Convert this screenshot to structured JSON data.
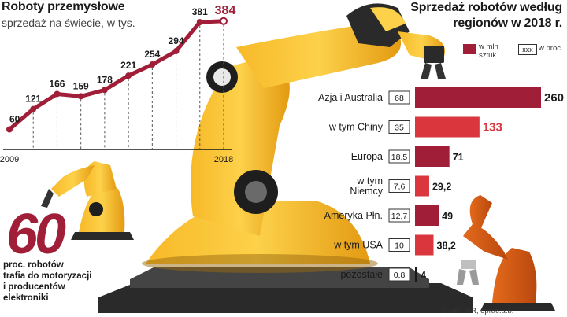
{
  "left_chart": {
    "title": "Roboty przemysłowe",
    "subtitle": "sprzedaż na świecie, w tys.",
    "colors": {
      "line": "#a01e37",
      "last_label": "#a01e37",
      "grid": "#555555"
    }
  },
  "right_chart": {
    "title_line1": "Sprzedaż robotów według",
    "title_line2": "regionów w 2018 r.",
    "legend": {
      "value_label_line1": "w mln",
      "value_label_line2": "sztuk",
      "percent_box": "xxx",
      "percent_label": "w proc."
    },
    "colors": {
      "dark_bar": "#a01e37",
      "light_bar": "#d9363e",
      "black_bar": "#1a1a1a"
    }
  },
  "chart_data": [
    {
      "type": "line",
      "title": "Roboty przemysłowe",
      "subtitle": "sprzedaż na świecie, w tys.",
      "x": [
        2009,
        2010,
        2011,
        2012,
        2013,
        2014,
        2015,
        2016,
        2017,
        2018
      ],
      "x_tick_labels": [
        "2009",
        "2018"
      ],
      "values": [
        60,
        121,
        166,
        159,
        178,
        221,
        254,
        294,
        381,
        384
      ],
      "value_labels": [
        "60",
        "121",
        "166",
        "159",
        "178",
        "221",
        "254",
        "294",
        "381",
        "384"
      ],
      "ylim": [
        0,
        400
      ],
      "grid": "vertical dashed"
    },
    {
      "type": "bar",
      "orientation": "horizontal",
      "title": "Sprzedaż robotów według regionów w 2018 r.",
      "categories": [
        "Azja i Australia",
        "w tym Chiny",
        "Europa",
        "w tym Niemcy",
        "Ameryka Płn.",
        "w tym USA",
        "pozostałe"
      ],
      "category_lines": [
        [
          "Azja i Australia"
        ],
        [
          "w tym Chiny"
        ],
        [
          "Europa"
        ],
        [
          "w tym",
          "Niemcy"
        ],
        [
          "Ameryka Płn."
        ],
        [
          "w tym USA"
        ],
        [
          "pozostałe"
        ]
      ],
      "series": [
        {
          "name": "w mln sztuk",
          "values": [
            260,
            133,
            71,
            29.2,
            49,
            38.2,
            4
          ],
          "labels": [
            "260",
            "133",
            "71",
            "29,2",
            "49",
            "38,2",
            "4"
          ]
        },
        {
          "name": "w proc.",
          "values": [
            68,
            35,
            18.5,
            7.6,
            12.7,
            10,
            0.8
          ],
          "labels": [
            "68",
            "35",
            "18,5",
            "7,6",
            "12,7",
            "10",
            "0,8"
          ]
        }
      ],
      "bar_style": [
        "dark",
        "light",
        "dark",
        "light",
        "dark",
        "light",
        "black"
      ],
      "xlim": [
        0,
        260
      ]
    }
  ],
  "callout": {
    "number": "60",
    "line1": "proc. robotów",
    "line2": "trafia do motoryzacji",
    "line3": "i producentów",
    "line4": "elektroniki"
  },
  "source": "Źródło IFR, oprac.a.b."
}
